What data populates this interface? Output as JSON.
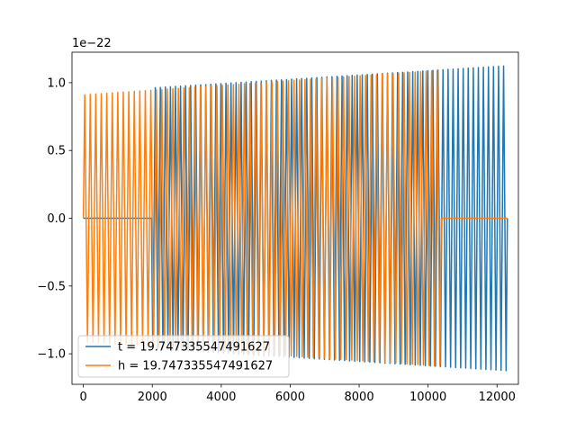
{
  "chart_data": {
    "type": "line",
    "offset_text": "1e−22",
    "xlim": [
      -330,
      12620
    ],
    "ylim": [
      -1.225,
      1.225
    ],
    "xticks": [
      0,
      2000,
      4000,
      6000,
      8000,
      10000,
      12000
    ],
    "xtick_labels": [
      "0",
      "2000",
      "4000",
      "6000",
      "8000",
      "10000",
      "12000"
    ],
    "yticks": [
      -1.0,
      -0.5,
      0.0,
      0.5,
      1.0
    ],
    "ytick_labels": [
      "−1.0",
      "−0.5",
      "0.0",
      "0.5",
      "1.0"
    ],
    "grid": false,
    "legend_position": "lower-left",
    "series": [
      {
        "name": "t = 19.747335547491627",
        "color": "#1f77b4",
        "x_start": 0,
        "x_signal_start": 1950,
        "x_end": 12300,
        "amplitude_start": 0.93,
        "amplitude_end": 1.125,
        "cycles": 84
      },
      {
        "name": "h = 19.747335547491627",
        "color": "#ff7f0e",
        "x_start": 0,
        "x_signal_end": 10420,
        "x_end": 12300,
        "amplitude_start": 0.91,
        "amplitude_end": 1.125,
        "cycles": 77
      }
    ]
  }
}
